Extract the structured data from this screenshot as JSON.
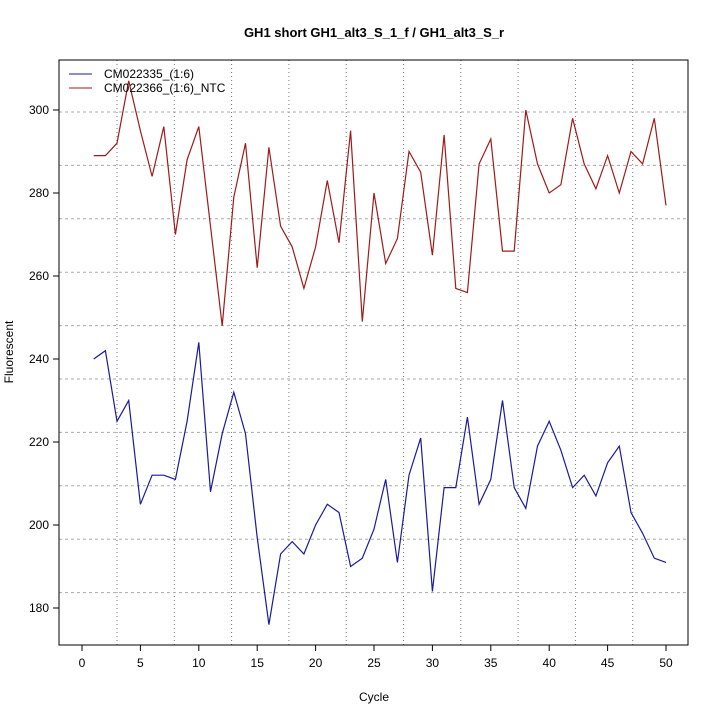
{
  "chart_data": {
    "type": "line",
    "title": "GH1 short GH1_alt3_S_1_f / GH1_alt3_S_r",
    "xlabel": "Cycle",
    "ylabel": "Fluorescent",
    "xlim": [
      -2,
      52
    ],
    "ylim": [
      170.5,
      312.5
    ],
    "xticks": [
      0,
      5,
      10,
      15,
      20,
      25,
      30,
      35,
      40,
      45,
      50
    ],
    "yticks": [
      180,
      200,
      220,
      240,
      260,
      280,
      300
    ],
    "grid": true,
    "legend_position": "top-left",
    "x": [
      1,
      2,
      3,
      4,
      5,
      6,
      7,
      8,
      9,
      10,
      11,
      12,
      13,
      14,
      15,
      16,
      17,
      18,
      19,
      20,
      21,
      22,
      23,
      24,
      25,
      26,
      27,
      28,
      29,
      30,
      31,
      32,
      33,
      34,
      35,
      36,
      37,
      38,
      39,
      40,
      41,
      42,
      43,
      44,
      45,
      46,
      47,
      48,
      49,
      50
    ],
    "series": [
      {
        "name": "CM022335_(1:6)",
        "color": "#1a1aa0",
        "values": [
          240,
          242,
          225,
          230,
          205,
          212,
          212,
          211,
          225,
          244,
          208,
          222,
          232,
          222,
          197,
          176,
          193,
          196,
          193,
          200,
          205,
          203,
          190,
          192,
          199,
          211,
          191,
          212,
          221,
          184,
          209,
          209,
          226,
          205,
          211,
          230,
          209,
          204,
          219,
          225,
          218,
          209,
          212,
          207,
          215,
          219,
          203,
          198,
          192,
          191
        ]
      },
      {
        "name": "CM022366_(1:6)_NTC",
        "color": "#a01a1a",
        "values": [
          289,
          289,
          292,
          307,
          295,
          284,
          296,
          270,
          288,
          296,
          272,
          248,
          279,
          292,
          262,
          291,
          272,
          267,
          257,
          267,
          283,
          268,
          295,
          249,
          280,
          263,
          269,
          290,
          285,
          265,
          294,
          257,
          256,
          287,
          293,
          266,
          266,
          300,
          287,
          280,
          282,
          298,
          287,
          281,
          289,
          280,
          290,
          287,
          298,
          277
        ]
      }
    ]
  }
}
